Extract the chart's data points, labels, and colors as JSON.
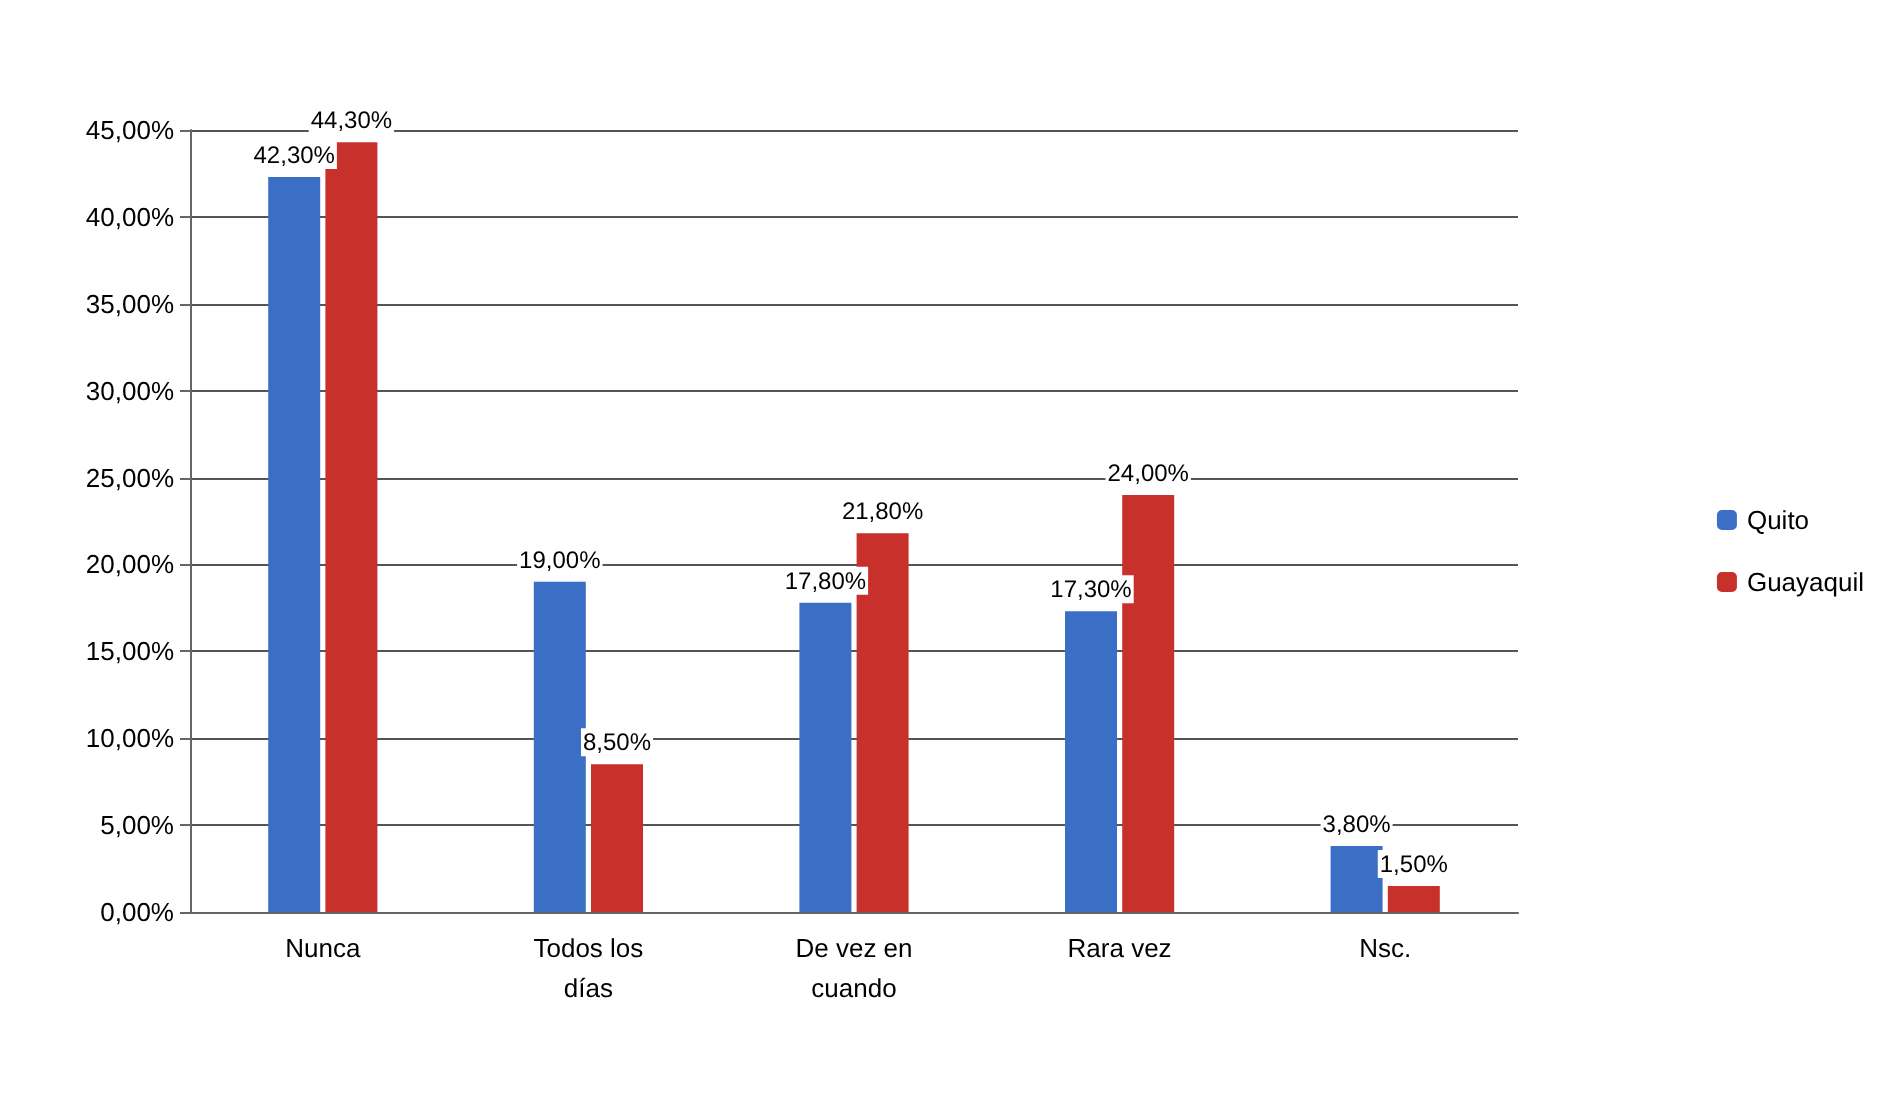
{
  "chart_data": {
    "type": "bar",
    "categories": [
      "Nunca",
      "Todos los\ndías",
      "De vez en\ncuando",
      "Rara vez",
      "Nsc."
    ],
    "series": [
      {
        "name": "Quito",
        "color": "#3b6fc6",
        "values": [
          42.3,
          19.0,
          17.8,
          17.3,
          3.8
        ],
        "value_labels": [
          "42,30%",
          "19,00%",
          "17,80%",
          "17,30%",
          "3,80%"
        ]
      },
      {
        "name": "Guayaquil",
        "color": "#c8302c",
        "values": [
          44.3,
          8.5,
          21.8,
          24.0,
          1.5
        ],
        "value_labels": [
          "44,30%",
          "8,50%",
          "21,80%",
          "24,00%",
          "1,50%"
        ]
      }
    ],
    "ylim": [
      0,
      45
    ],
    "yticks": [
      {
        "value": 0,
        "label": "0,00%"
      },
      {
        "value": 5,
        "label": "5,00%"
      },
      {
        "value": 10,
        "label": "10,00%"
      },
      {
        "value": 15,
        "label": "15,00%"
      },
      {
        "value": 20,
        "label": "20,00%"
      },
      {
        "value": 25,
        "label": "25,00%"
      },
      {
        "value": 30,
        "label": "30,00%"
      },
      {
        "value": 35,
        "label": "35,00%"
      },
      {
        "value": 40,
        "label": "40,00%"
      },
      {
        "value": 45,
        "label": "45,00%"
      }
    ],
    "grid": "y",
    "legend": "right"
  }
}
